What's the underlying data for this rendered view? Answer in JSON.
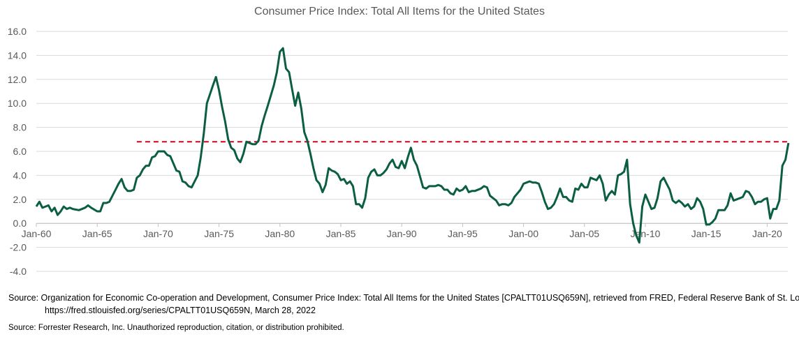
{
  "chart_data": {
    "type": "line",
    "title": "Consumer Price Index: Total All Items for the United States",
    "xlabel": "",
    "ylabel": "",
    "ylim": [
      -4,
      16
    ],
    "y_ticks": [
      "16.0",
      "14.0",
      "12.0",
      "10.0",
      "8.0",
      "6.0",
      "4.0",
      "2.0",
      "0.0",
      "-2.0",
      "-4.0"
    ],
    "x_ticks": [
      "Jan-60",
      "Jan-65",
      "Jan-70",
      "Jan-75",
      "Jan-80",
      "Jan-85",
      "Jan-90",
      "Jan-95",
      "Jan-00",
      "Jan-05",
      "Jan-10",
      "Jan-15",
      "Jan-20"
    ],
    "grid": true,
    "colors": {
      "series": "#0B5E43",
      "reference": "#D0021B",
      "grid": "#D9D9D9",
      "text": "#595959"
    },
    "reference_line": {
      "value": 6.8,
      "from": "1968Q2",
      "style": "dashed"
    },
    "series": [
      {
        "points": [
          [
            "1960Q1",
            1.4
          ],
          [
            "1960Q2",
            1.8
          ],
          [
            "1960Q3",
            1.3
          ],
          [
            "1960Q4",
            1.4
          ],
          [
            "1961Q1",
            1.5
          ],
          [
            "1961Q2",
            1.0
          ],
          [
            "1961Q3",
            1.3
          ],
          [
            "1961Q4",
            0.7
          ],
          [
            "1962Q1",
            1.0
          ],
          [
            "1962Q2",
            1.4
          ],
          [
            "1962Q3",
            1.2
          ],
          [
            "1962Q4",
            1.3
          ],
          [
            "1963Q1",
            1.2
          ],
          [
            "1963Q3",
            1.1
          ],
          [
            "1964Q1",
            1.3
          ],
          [
            "1964Q2",
            1.5
          ],
          [
            "1964Q3",
            1.3
          ],
          [
            "1965Q1",
            1.0
          ],
          [
            "1965Q2",
            1.0
          ],
          [
            "1965Q3",
            1.7
          ],
          [
            "1965Q4",
            1.7
          ],
          [
            "1966Q1",
            1.8
          ],
          [
            "1966Q3",
            2.8
          ],
          [
            "1966Q4",
            3.3
          ],
          [
            "1967Q1",
            3.7
          ],
          [
            "1967Q2",
            3.0
          ],
          [
            "1967Q3",
            2.7
          ],
          [
            "1967Q4",
            2.7
          ],
          [
            "1968Q1",
            2.8
          ],
          [
            "1968Q2",
            3.8
          ],
          [
            "1968Q3",
            4.0
          ],
          [
            "1968Q4",
            4.5
          ],
          [
            "1969Q1",
            4.8
          ],
          [
            "1969Q2",
            4.8
          ],
          [
            "1969Q3",
            5.5
          ],
          [
            "1969Q4",
            5.6
          ],
          [
            "1970Q1",
            6.0
          ],
          [
            "1970Q3",
            6.0
          ],
          [
            "1970Q4",
            5.7
          ],
          [
            "1971Q1",
            5.6
          ],
          [
            "1971Q2",
            5.0
          ],
          [
            "1971Q3",
            4.4
          ],
          [
            "1971Q4",
            4.3
          ],
          [
            "1972Q1",
            3.5
          ],
          [
            "1972Q2",
            3.4
          ],
          [
            "1972Q3",
            3.1
          ],
          [
            "1972Q4",
            3.0
          ],
          [
            "1973Q1",
            3.5
          ],
          [
            "1973Q2",
            4.0
          ],
          [
            "1973Q3",
            5.5
          ],
          [
            "1973Q4",
            7.5
          ],
          [
            "1974Q1",
            10.0
          ],
          [
            "1974Q3",
            11.5
          ],
          [
            "1974Q4",
            12.2
          ],
          [
            "1975Q1",
            11.1
          ],
          [
            "1975Q2",
            9.7
          ],
          [
            "1975Q3",
            8.5
          ],
          [
            "1975Q4",
            7.0
          ],
          [
            "1976Q1",
            6.3
          ],
          [
            "1976Q2",
            6.1
          ],
          [
            "1976Q3",
            5.4
          ],
          [
            "1976Q4",
            5.1
          ],
          [
            "1977Q1",
            5.8
          ],
          [
            "1977Q2",
            6.8
          ],
          [
            "1977Q3",
            6.7
          ],
          [
            "1977Q4",
            6.6
          ],
          [
            "1978Q1",
            6.6
          ],
          [
            "1978Q2",
            6.9
          ],
          [
            "1978Q3",
            8.1
          ],
          [
            "1978Q4",
            9.0
          ],
          [
            "1979Q1",
            9.8
          ],
          [
            "1979Q3",
            11.5
          ],
          [
            "1979Q4",
            12.6
          ],
          [
            "1980Q1",
            14.3
          ],
          [
            "1980Q2",
            14.6
          ],
          [
            "1980Q3",
            12.9
          ],
          [
            "1980Q4",
            12.6
          ],
          [
            "1981Q1",
            11.2
          ],
          [
            "1981Q2",
            9.8
          ],
          [
            "1981Q3",
            10.9
          ],
          [
            "1981Q4",
            9.6
          ],
          [
            "1982Q1",
            7.6
          ],
          [
            "1982Q2",
            6.9
          ],
          [
            "1982Q3",
            5.8
          ],
          [
            "1982Q4",
            4.6
          ],
          [
            "1983Q1",
            3.6
          ],
          [
            "1983Q2",
            3.3
          ],
          [
            "1983Q3",
            2.6
          ],
          [
            "1983Q4",
            3.2
          ],
          [
            "1984Q1",
            4.6
          ],
          [
            "1984Q2",
            4.4
          ],
          [
            "1984Q3",
            4.3
          ],
          [
            "1984Q4",
            4.1
          ],
          [
            "1985Q1",
            3.6
          ],
          [
            "1985Q2",
            3.7
          ],
          [
            "1985Q3",
            3.3
          ],
          [
            "1985Q4",
            3.5
          ],
          [
            "1986Q1",
            3.1
          ],
          [
            "1986Q2",
            1.6
          ],
          [
            "1986Q3",
            1.6
          ],
          [
            "1986Q4",
            1.3
          ],
          [
            "1987Q1",
            2.1
          ],
          [
            "1987Q2",
            3.8
          ],
          [
            "1987Q3",
            4.3
          ],
          [
            "1987Q4",
            4.5
          ],
          [
            "1988Q1",
            4.0
          ],
          [
            "1988Q2",
            4.0
          ],
          [
            "1988Q3",
            4.2
          ],
          [
            "1988Q4",
            4.5
          ],
          [
            "1989Q1",
            5.0
          ],
          [
            "1989Q2",
            5.3
          ],
          [
            "1989Q3",
            4.7
          ],
          [
            "1989Q4",
            4.6
          ],
          [
            "1990Q1",
            5.2
          ],
          [
            "1990Q2",
            4.6
          ],
          [
            "1990Q3",
            5.5
          ],
          [
            "1990Q4",
            6.3
          ],
          [
            "1991Q1",
            5.3
          ],
          [
            "1991Q2",
            4.8
          ],
          [
            "1991Q3",
            3.9
          ],
          [
            "1991Q4",
            3.0
          ],
          [
            "1992Q1",
            2.9
          ],
          [
            "1992Q2",
            3.1
          ],
          [
            "1992Q3",
            3.1
          ],
          [
            "1992Q4",
            3.1
          ],
          [
            "1993Q1",
            3.2
          ],
          [
            "1993Q2",
            3.1
          ],
          [
            "1993Q3",
            2.8
          ],
          [
            "1993Q4",
            2.8
          ],
          [
            "1994Q1",
            2.5
          ],
          [
            "1994Q2",
            2.4
          ],
          [
            "1994Q3",
            2.9
          ],
          [
            "1994Q4",
            2.7
          ],
          [
            "1995Q1",
            2.8
          ],
          [
            "1995Q2",
            3.1
          ],
          [
            "1995Q3",
            2.6
          ],
          [
            "1995Q4",
            2.7
          ],
          [
            "1996Q1",
            2.7
          ],
          [
            "1996Q3",
            2.9
          ],
          [
            "1996Q4",
            3.1
          ],
          [
            "1997Q1",
            3.0
          ],
          [
            "1997Q2",
            2.3
          ],
          [
            "1997Q3",
            2.1
          ],
          [
            "1997Q4",
            1.9
          ],
          [
            "1998Q1",
            1.5
          ],
          [
            "1998Q2",
            1.6
          ],
          [
            "1998Q3",
            1.6
          ],
          [
            "1998Q4",
            1.5
          ],
          [
            "1999Q1",
            1.7
          ],
          [
            "1999Q2",
            2.2
          ],
          [
            "1999Q3",
            2.5
          ],
          [
            "1999Q4",
            2.8
          ],
          [
            "2000Q1",
            3.3
          ],
          [
            "2000Q2",
            3.4
          ],
          [
            "2000Q3",
            3.5
          ],
          [
            "2000Q4",
            3.4
          ],
          [
            "2001Q1",
            3.4
          ],
          [
            "2001Q2",
            3.3
          ],
          [
            "2001Q3",
            2.6
          ],
          [
            "2001Q4",
            1.8
          ],
          [
            "2002Q1",
            1.2
          ],
          [
            "2002Q2",
            1.3
          ],
          [
            "2002Q3",
            1.6
          ],
          [
            "2002Q4",
            2.2
          ],
          [
            "2003Q1",
            2.9
          ],
          [
            "2003Q2",
            2.2
          ],
          [
            "2003Q3",
            2.2
          ],
          [
            "2003Q4",
            1.9
          ],
          [
            "2004Q1",
            1.8
          ],
          [
            "2004Q2",
            2.9
          ],
          [
            "2004Q3",
            2.8
          ],
          [
            "2004Q4",
            3.3
          ],
          [
            "2005Q1",
            3.0
          ],
          [
            "2005Q2",
            3.0
          ],
          [
            "2005Q3",
            3.8
          ],
          [
            "2005Q4",
            3.7
          ],
          [
            "2006Q1",
            3.6
          ],
          [
            "2006Q2",
            4.0
          ],
          [
            "2006Q3",
            3.3
          ],
          [
            "2006Q4",
            1.9
          ],
          [
            "2007Q1",
            2.4
          ],
          [
            "2007Q2",
            2.7
          ],
          [
            "2007Q3",
            2.4
          ],
          [
            "2007Q4",
            4.0
          ],
          [
            "2008Q1",
            4.1
          ],
          [
            "2008Q2",
            4.3
          ],
          [
            "2008Q3",
            5.3
          ],
          [
            "2008Q4",
            1.6
          ],
          [
            "2009Q1",
            0.0
          ],
          [
            "2009Q2",
            -1.0
          ],
          [
            "2009Q3",
            -1.6
          ],
          [
            "2009Q4",
            1.4
          ],
          [
            "2010Q1",
            2.4
          ],
          [
            "2010Q2",
            1.8
          ],
          [
            "2010Q3",
            1.2
          ],
          [
            "2010Q4",
            1.3
          ],
          [
            "2011Q1",
            2.1
          ],
          [
            "2011Q2",
            3.5
          ],
          [
            "2011Q3",
            3.8
          ],
          [
            "2011Q4",
            3.3
          ],
          [
            "2012Q1",
            2.8
          ],
          [
            "2012Q2",
            1.9
          ],
          [
            "2012Q3",
            1.7
          ],
          [
            "2012Q4",
            1.9
          ],
          [
            "2013Q1",
            1.7
          ],
          [
            "2013Q2",
            1.4
          ],
          [
            "2013Q3",
            1.6
          ],
          [
            "2013Q4",
            1.2
          ],
          [
            "2014Q1",
            1.4
          ],
          [
            "2014Q2",
            2.1
          ],
          [
            "2014Q3",
            1.8
          ],
          [
            "2014Q4",
            1.2
          ],
          [
            "2015Q1",
            -0.1
          ],
          [
            "2015Q2",
            -0.1
          ],
          [
            "2015Q3",
            0.1
          ],
          [
            "2015Q4",
            0.4
          ],
          [
            "2016Q1",
            1.1
          ],
          [
            "2016Q2",
            1.1
          ],
          [
            "2016Q3",
            1.1
          ],
          [
            "2016Q4",
            1.5
          ],
          [
            "2017Q1",
            2.5
          ],
          [
            "2017Q2",
            1.9
          ],
          [
            "2017Q3",
            2.0
          ],
          [
            "2017Q4",
            2.1
          ],
          [
            "2018Q1",
            2.2
          ],
          [
            "2018Q2",
            2.7
          ],
          [
            "2018Q3",
            2.6
          ],
          [
            "2018Q4",
            2.2
          ],
          [
            "2019Q1",
            1.6
          ],
          [
            "2019Q2",
            1.8
          ],
          [
            "2019Q3",
            1.8
          ],
          [
            "2019Q4",
            2.0
          ],
          [
            "2020Q1",
            2.1
          ],
          [
            "2020Q2",
            0.4
          ],
          [
            "2020Q3",
            1.2
          ],
          [
            "2020Q4",
            1.2
          ],
          [
            "2021Q1",
            1.9
          ],
          [
            "2021Q2",
            4.8
          ],
          [
            "2021Q3",
            5.3
          ],
          [
            "2021Q4",
            6.7
          ]
        ]
      }
    ]
  },
  "sources": {
    "line1": "Source: Organization for Economic Co-operation and Development, Consumer Price Index: Total All Items for the United States [CPALTT01USQ659N], retrieved from FRED, Federal Reserve Bank of St. Louis; https://fred.stlouisfed.org/series/CPALTT01USQ659N, March 28, 2022",
    "line2": "Source: Forrester Research, Inc. Unauthorized reproduction, citation, or distribution prohibited."
  }
}
